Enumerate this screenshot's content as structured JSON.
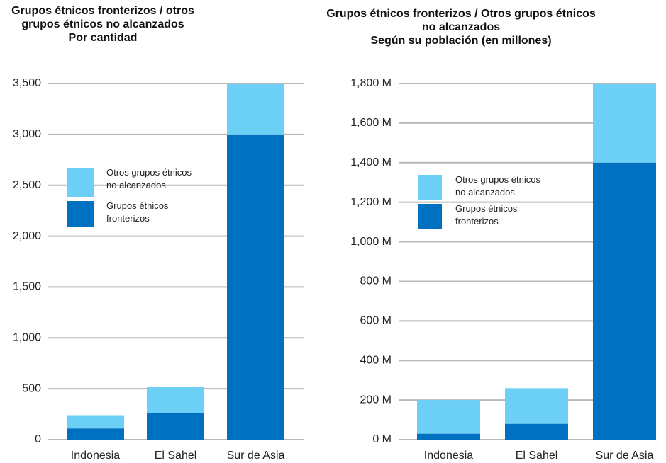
{
  "chart_data": [
    {
      "type": "bar",
      "stacked": true,
      "title": "Grupos étnicos fronterizos / otros grupos étnicos no alcanzados",
      "subtitle": "Por cantidad",
      "categories": [
        "Indonesia",
        "El Sahel",
        "Sur de Asia"
      ],
      "series": [
        {
          "name": "Grupos étnicos fronterizos",
          "color": "#0070c0",
          "values": [
            110,
            260,
            3000
          ]
        },
        {
          "name": "Otros grupos étnicos no alcanzados",
          "color": "#6ccff6",
          "values": [
            130,
            260,
            500
          ]
        }
      ],
      "ylim": [
        0,
        3500
      ],
      "yticks": [
        0,
        500,
        {
          "value": 1000,
          "label": "1,000"
        },
        {
          "value": 1500,
          "label": "1,500"
        },
        {
          "value": 2000,
          "label": "2,000"
        },
        {
          "value": 2500,
          "label": "2,500"
        },
        {
          "value": 3000,
          "label": "3,000"
        },
        {
          "value": 3500,
          "label": "3,500"
        }
      ],
      "grid": true,
      "legend": "upper left"
    },
    {
      "type": "bar",
      "stacked": true,
      "title": "Grupos étnicos fronterizos / Otros grupos étnicos no alcanzados",
      "subtitle": "Según su población (en millones)",
      "categories": [
        "Indonesia",
        "El Sahel",
        "Sur de Asia"
      ],
      "series": [
        {
          "name": "Grupos étnicos fronterizos",
          "color": "#0070c0",
          "values": [
            30,
            80,
            1400
          ]
        },
        {
          "name": "Otros grupos étnicos no alcanzados",
          "color": "#6ccff6",
          "values": [
            170,
            180,
            400
          ]
        }
      ],
      "ylim": [
        0,
        1800
      ],
      "yticks": [
        {
          "value": 0,
          "label": "0 M"
        },
        {
          "value": 200,
          "label": "200 M"
        },
        {
          "value": 400,
          "label": "400 M"
        },
        {
          "value": 600,
          "label": "600 M"
        },
        {
          "value": 800,
          "label": "800 M"
        },
        {
          "value": 1000,
          "label": "1,000 M"
        },
        {
          "value": 1200,
          "label": "1,200 M"
        },
        {
          "value": 1400,
          "label": "1,400 M"
        },
        {
          "value": 1600,
          "label": "1,600 M"
        },
        {
          "value": 1800,
          "label": "1,800 M"
        }
      ],
      "grid": true,
      "legend": "upper left"
    }
  ]
}
